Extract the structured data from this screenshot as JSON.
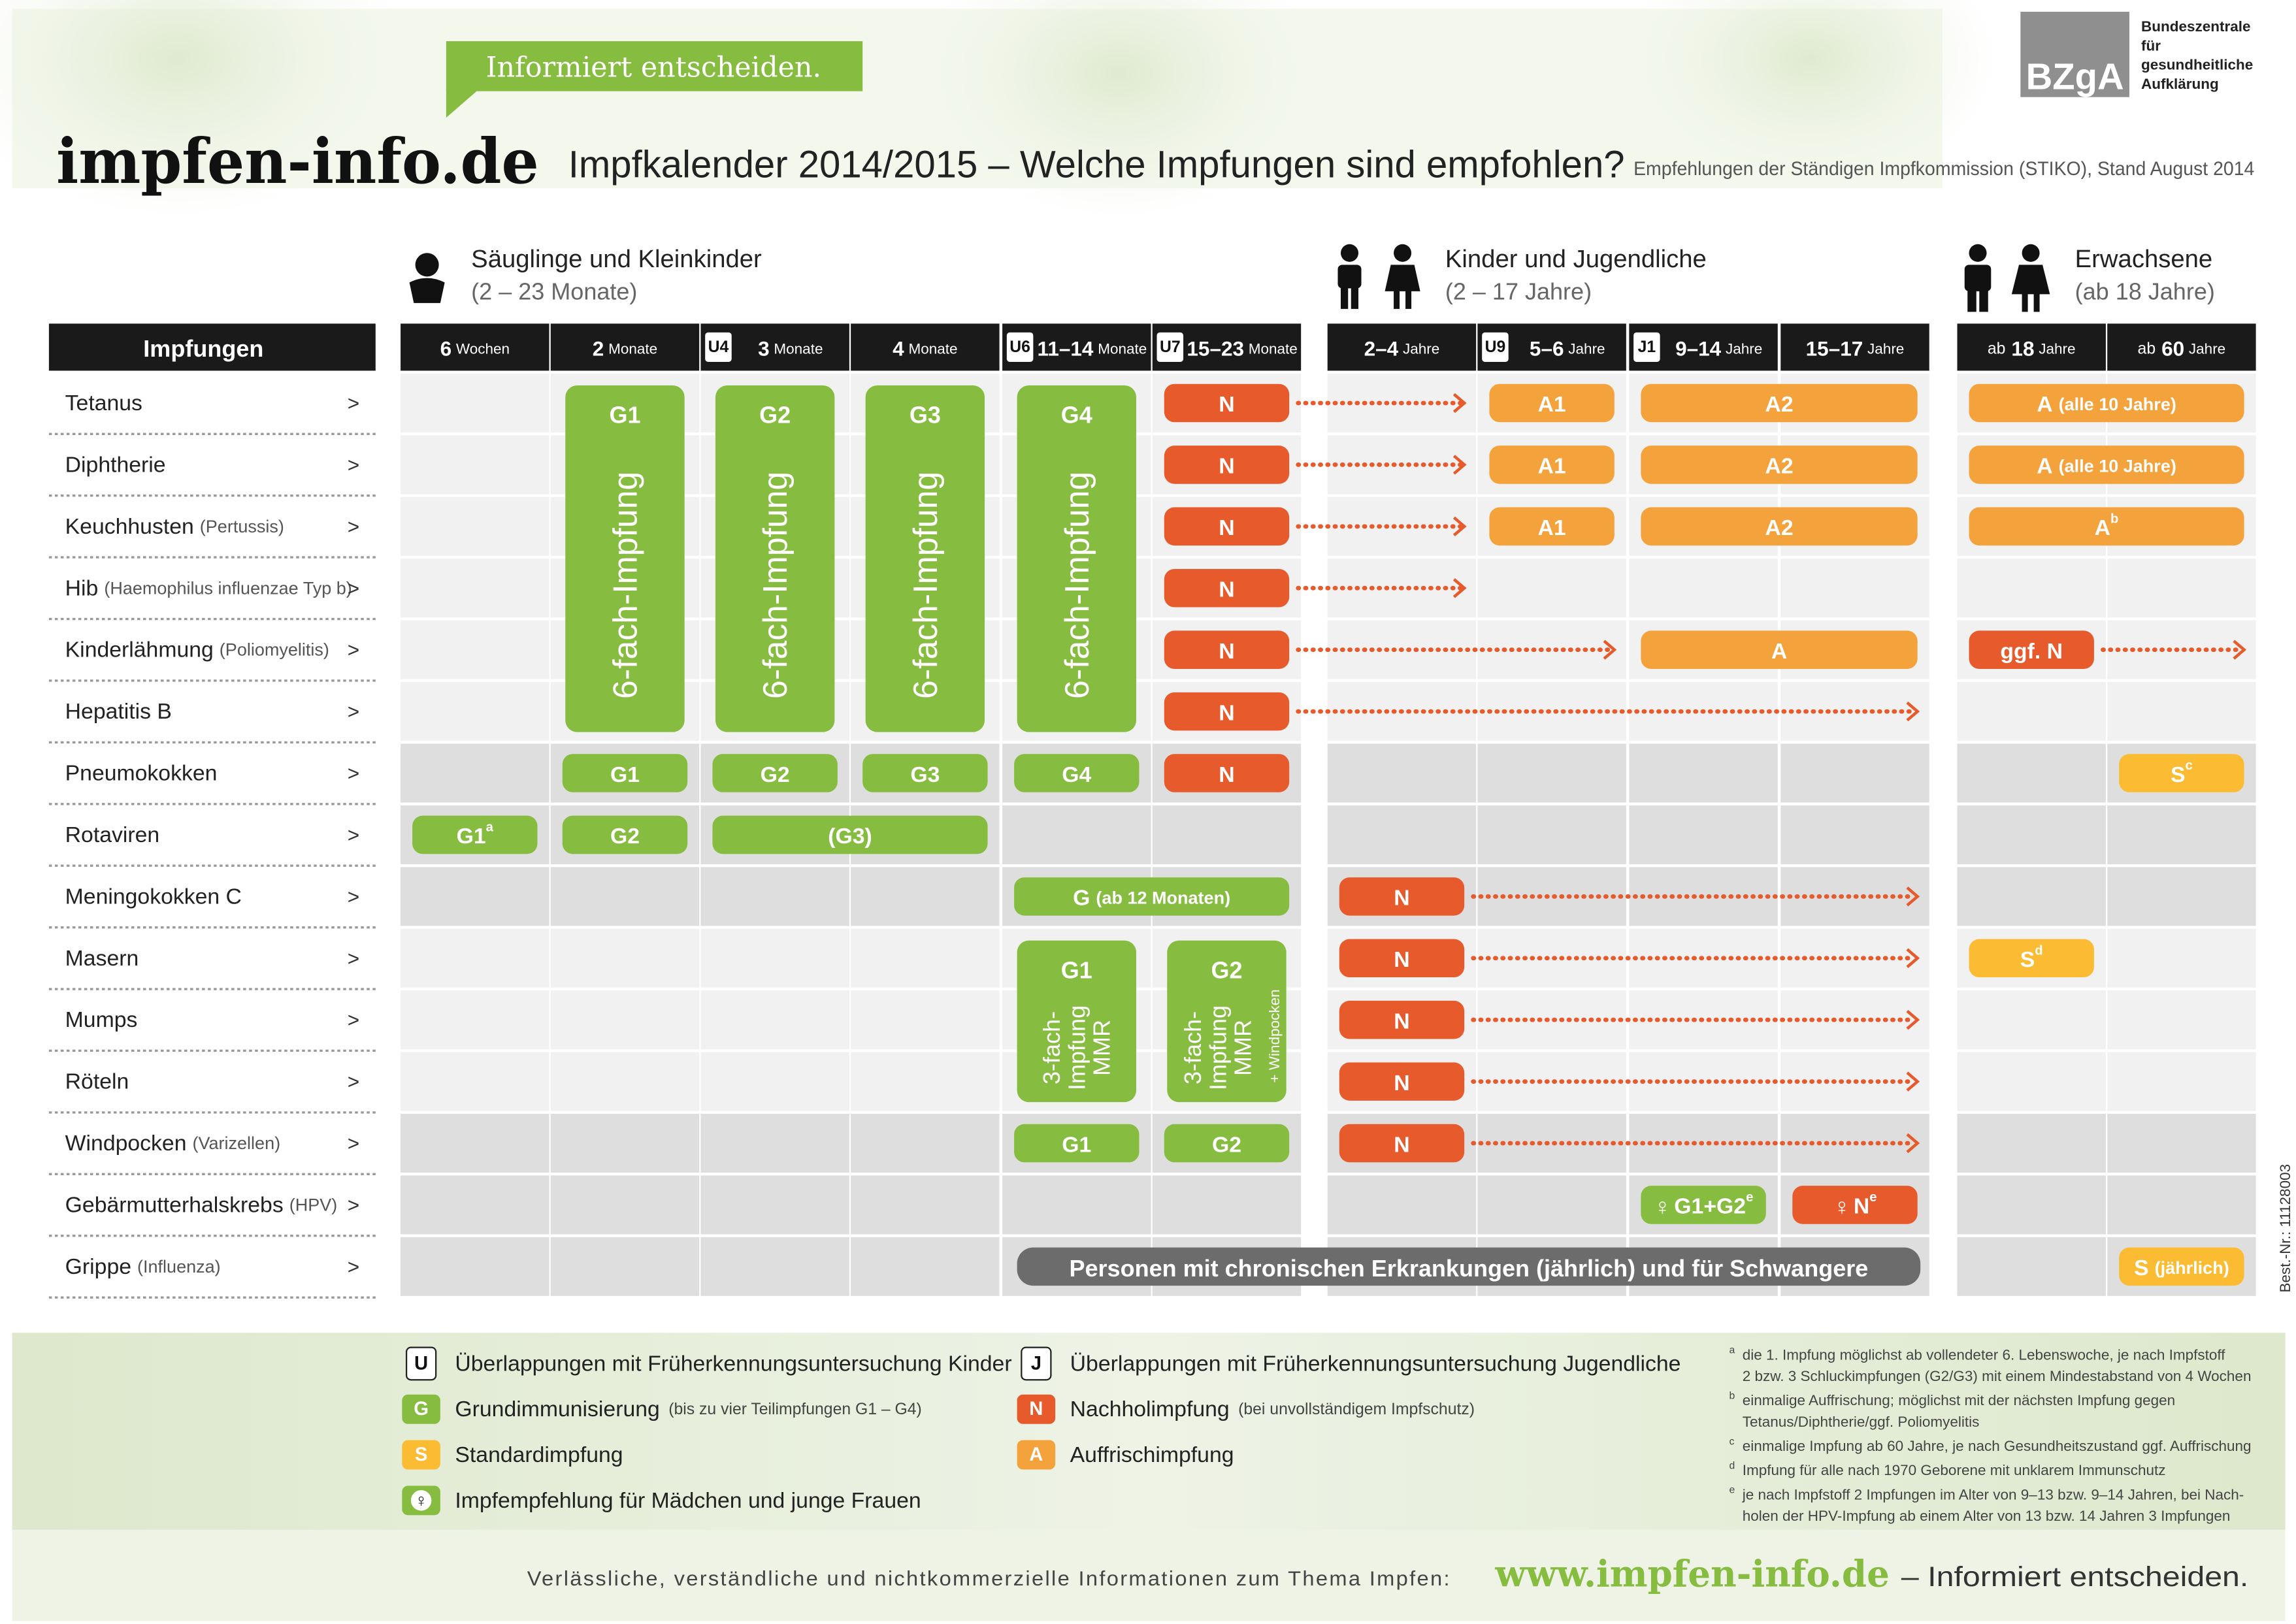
{
  "header": {
    "slogan": "Informiert entscheiden.",
    "logo": "impfen-info.de",
    "title": "Impfkalender 2014/2015 – Welche Impfungen sind empfohlen?",
    "subtitle": "Empfehlungen der Ständigen Impfkommission (STIKO), Stand August 2014",
    "org_short": "BZgA",
    "org_lines": [
      "Bundeszentrale",
      "für",
      "gesundheitliche",
      "Aufklärung"
    ]
  },
  "groups": [
    {
      "title": "Säuglinge und Kleinkinder",
      "range": "(2 – 23 Monate)"
    },
    {
      "title": "Kinder und Jugendliche",
      "range": "(2 – 17 Jahre)"
    },
    {
      "title": "Erwachsene",
      "range": "(ab 18  Jahre)"
    }
  ],
  "row_header": "Impfungen",
  "row_arrow": ">",
  "colors": {
    "G": "#86bc3f",
    "N": "#e75a2b",
    "A": "#f4a23c",
    "S": "#fbbc33",
    "chronic": "#6c6c6c"
  },
  "columns": [
    {
      "value": "6",
      "unit": "Wochen"
    },
    {
      "value": "2",
      "unit": "Monate"
    },
    {
      "badge": "U4",
      "value": "3",
      "unit": "Monate"
    },
    {
      "value": "4",
      "unit": "Monate"
    },
    {
      "badge": "U6",
      "value": "11–14",
      "unit": "Monate"
    },
    {
      "badge": "U7",
      "value": "15–23",
      "unit": "Monate"
    },
    {
      "value": "2–4",
      "unit": "Jahre"
    },
    {
      "badge": "U9",
      "value": "5–6",
      "unit": "Jahre"
    },
    {
      "badge": "J1",
      "value": "9–14",
      "unit": "Jahre"
    },
    {
      "value": "15–17",
      "unit": "Jahre"
    },
    {
      "prefix": "ab",
      "value": "18",
      "unit": "Jahre"
    },
    {
      "prefix": "ab",
      "value": "60",
      "unit": "Jahre"
    }
  ],
  "blocks": [
    {
      "label": "G1",
      "lines": [
        "6-fach-Impfung"
      ],
      "col": 1,
      "rows": [
        0,
        5
      ]
    },
    {
      "label": "G2",
      "lines": [
        "6-fach-Impfung"
      ],
      "col": 2,
      "rows": [
        0,
        5
      ]
    },
    {
      "label": "G3",
      "lines": [
        "6-fach-Impfung"
      ],
      "col": 3,
      "rows": [
        0,
        5
      ]
    },
    {
      "label": "G4",
      "lines": [
        "6-fach-Impfung"
      ],
      "col": 4,
      "rows": [
        0,
        5
      ]
    },
    {
      "label": "G1",
      "lines": [
        "3-fach-",
        "Impfung",
        "MMR"
      ],
      "col": 4,
      "rows": [
        9,
        11
      ]
    },
    {
      "label": "G2",
      "lines": [
        "3-fach-",
        "Impfung",
        "MMR"
      ],
      "note": "+ Windpocken",
      "col": 5,
      "rows": [
        9,
        11
      ]
    }
  ],
  "rows": [
    {
      "name": "Tetanus",
      "cells": [
        {
          "kind": "N",
          "label": "N",
          "cols": [
            5,
            5
          ],
          "arrow_to": 6
        },
        {
          "kind": "A",
          "label": "A1",
          "cols": [
            7,
            7
          ]
        },
        {
          "kind": "A",
          "label": "A2",
          "cols": [
            8,
            9
          ]
        },
        {
          "kind": "A",
          "label": "A",
          "suffix": "(alle 10 Jahre)",
          "cols": [
            10,
            11
          ]
        }
      ]
    },
    {
      "name": "Diphtherie",
      "cells": [
        {
          "kind": "N",
          "label": "N",
          "cols": [
            5,
            5
          ],
          "arrow_to": 6
        },
        {
          "kind": "A",
          "label": "A1",
          "cols": [
            7,
            7
          ]
        },
        {
          "kind": "A",
          "label": "A2",
          "cols": [
            8,
            9
          ]
        },
        {
          "kind": "A",
          "label": "A",
          "suffix": "(alle 10 Jahre)",
          "cols": [
            10,
            11
          ]
        }
      ]
    },
    {
      "name": "Keuchhusten",
      "note": "(Pertussis)",
      "cells": [
        {
          "kind": "N",
          "label": "N",
          "cols": [
            5,
            5
          ],
          "arrow_to": 6
        },
        {
          "kind": "A",
          "label": "A1",
          "cols": [
            7,
            7
          ]
        },
        {
          "kind": "A",
          "label": "A2",
          "cols": [
            8,
            9
          ]
        },
        {
          "kind": "A",
          "label": "A",
          "sup": "b",
          "cols": [
            10,
            11
          ]
        }
      ]
    },
    {
      "name": "Hib",
      "note": "(Haemophilus influenzae Typ b)",
      "cells": [
        {
          "kind": "N",
          "label": "N",
          "cols": [
            5,
            5
          ],
          "arrow_to": 6
        }
      ]
    },
    {
      "name": "Kinderlähmung",
      "note": "(Poliomyelitis)",
      "cells": [
        {
          "kind": "N",
          "label": "N",
          "cols": [
            5,
            5
          ],
          "arrow_to": 7
        },
        {
          "kind": "A",
          "label": "A",
          "cols": [
            8,
            9
          ]
        },
        {
          "kind": "N",
          "label": "ggf. N",
          "cols": [
            10,
            10
          ],
          "arrow_to": 11
        }
      ]
    },
    {
      "name": "Hepatitis B",
      "cells": [
        {
          "kind": "N",
          "label": "N",
          "cols": [
            5,
            5
          ],
          "arrow_to": 9
        }
      ]
    },
    {
      "name": "Pneumokokken",
      "cells": [
        {
          "kind": "G",
          "label": "G1",
          "cols": [
            1,
            1
          ]
        },
        {
          "kind": "G",
          "label": "G2",
          "cols": [
            2,
            2
          ]
        },
        {
          "kind": "G",
          "label": "G3",
          "cols": [
            3,
            3
          ]
        },
        {
          "kind": "G",
          "label": "G4",
          "cols": [
            4,
            4
          ]
        },
        {
          "kind": "N",
          "label": "N",
          "cols": [
            5,
            5
          ]
        },
        {
          "kind": "S",
          "label": "S",
          "sup": "c",
          "cols": [
            11,
            11
          ]
        }
      ]
    },
    {
      "name": "Rotaviren",
      "cells": [
        {
          "kind": "G",
          "label": "G1",
          "sup": "a",
          "cols": [
            0,
            0
          ]
        },
        {
          "kind": "G",
          "label": "G2",
          "cols": [
            1,
            1
          ]
        },
        {
          "kind": "G",
          "label": "(G3)",
          "cols": [
            2,
            3
          ]
        }
      ]
    },
    {
      "name": "Meningokokken C",
      "cells": [
        {
          "kind": "G",
          "label": "G",
          "suffix": "(ab 12 Monaten)",
          "cols": [
            4,
            5
          ]
        },
        {
          "kind": "N",
          "label": "N",
          "cols": [
            6,
            6
          ],
          "arrow_to": 9
        }
      ]
    },
    {
      "name": "Masern",
      "cells": [
        {
          "kind": "N",
          "label": "N",
          "cols": [
            6,
            6
          ],
          "arrow_to": 9
        },
        {
          "kind": "S",
          "label": "S",
          "sup": "d",
          "cols": [
            10,
            10
          ]
        }
      ]
    },
    {
      "name": "Mumps",
      "cells": [
        {
          "kind": "N",
          "label": "N",
          "cols": [
            6,
            6
          ],
          "arrow_to": 9
        }
      ]
    },
    {
      "name": "Röteln",
      "cells": [
        {
          "kind": "N",
          "label": "N",
          "cols": [
            6,
            6
          ],
          "arrow_to": 9
        }
      ]
    },
    {
      "name": "Windpocken",
      "note": "(Varizellen)",
      "cells": [
        {
          "kind": "G",
          "label": "G1",
          "cols": [
            4,
            4
          ]
        },
        {
          "kind": "G",
          "label": "G2",
          "cols": [
            5,
            5
          ]
        },
        {
          "kind": "N",
          "label": "N",
          "cols": [
            6,
            6
          ],
          "arrow_to": 9
        }
      ]
    },
    {
      "name": "Gebärmutterhalskrebs",
      "note": "(HPV)",
      "cells": [
        {
          "kind": "G",
          "prefix": "♀",
          "label": "G1+G2",
          "sup": "e",
          "cols": [
            8,
            8
          ]
        },
        {
          "kind": "N",
          "prefix": "♀",
          "label": "N",
          "sup": "e",
          "cols": [
            9,
            9
          ]
        }
      ]
    },
    {
      "name": "Grippe",
      "note": "(Influenza)",
      "cells": [
        {
          "kind": "chronic",
          "label": "Personen mit chronischen Erkrankungen (jährlich) und für Schwangere",
          "cols": [
            4,
            9
          ]
        },
        {
          "kind": "S",
          "label": "S",
          "suffix": "(jährlich)",
          "cols": [
            11,
            11
          ]
        }
      ]
    }
  ],
  "legend": [
    {
      "key": "U",
      "text": "Überlappungen mit Früherkennungsuntersuchung Kinder"
    },
    {
      "key": "G",
      "kind": "G",
      "text": "Grundimmunisierung",
      "note": "(bis zu vier Teilimpfungen G1 – G4)"
    },
    {
      "key": "S",
      "kind": "S",
      "text": "Standardimpfung"
    },
    {
      "key": "♀",
      "kind": "G",
      "text": "Impfempfehlung für Mädchen und junge Frauen"
    },
    {
      "key": "J",
      "text": "Überlappungen mit Früherkennungsuntersuchung Jugendliche"
    },
    {
      "key": "N",
      "kind": "N",
      "text": "Nachholimpfung",
      "note": "(bei unvollständigem Impfschutz)"
    },
    {
      "key": "A",
      "kind": "A",
      "text": "Auffrischimpfung"
    }
  ],
  "footnotes": [
    {
      "mark": "a",
      "lines": [
        "die 1. Impfung möglichst ab vollendeter 6. Lebenswoche, je nach Impfstoff",
        "2 bzw. 3 Schluckimpfungen (G2/G3) mit einem Mindestabstand von 4 Wochen"
      ]
    },
    {
      "mark": "b",
      "lines": [
        "einmalige Auffrischung; möglichst mit der nächsten Impfung gegen",
        "Tetanus/Diphtherie/ggf. Poliomyelitis"
      ]
    },
    {
      "mark": "c",
      "lines": [
        "einmalige Impfung ab 60 Jahre, je nach Gesundheitszustand ggf. Auffrischung"
      ]
    },
    {
      "mark": "d",
      "lines": [
        "Impfung für alle nach 1970 Geborene mit unklarem Immunschutz"
      ]
    },
    {
      "mark": "e",
      "lines": [
        "je nach Impfstoff 2 Impfungen im Alter von 9–13 bzw. 9–14 Jahren, bei Nach-",
        "holen der HPV-Impfung ab einem Alter von 13 bzw. 14 Jahren 3 Impfungen"
      ]
    }
  ],
  "footer": {
    "text": "Verlässliche, verständliche und nichtkommerzielle Informationen zum Thema Impfen:",
    "url": "www.impfen-info.de",
    "tail": "– Informiert entscheiden."
  },
  "order_no": "Best.-Nr.: 11128003"
}
